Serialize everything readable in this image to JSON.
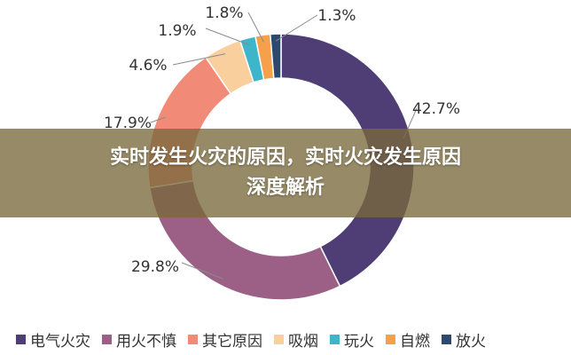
{
  "chart_data": {
    "type": "pie",
    "style": "donut",
    "categories": [
      "电气火灾",
      "用火不慎",
      "其它原因",
      "吸烟",
      "玩火",
      "自燃",
      "放火"
    ],
    "values": [
      42.7,
      29.8,
      17.9,
      4.6,
      1.9,
      1.8,
      1.3
    ],
    "value_labels": [
      "42.7%",
      "29.8%",
      "17.9%",
      "4.6%",
      "1.9%",
      "1.8%",
      "1.3%"
    ],
    "colors": [
      "#4f3d75",
      "#9c5f86",
      "#f28a78",
      "#f8cf9d",
      "#3eb5c9",
      "#f5a04a",
      "#2d4a6e"
    ],
    "legend_position": "bottom"
  },
  "banner": {
    "line1": "实时发生火灾的原因，实时火灾发生原因",
    "line2": "深度解析",
    "background": "#786a3c"
  }
}
